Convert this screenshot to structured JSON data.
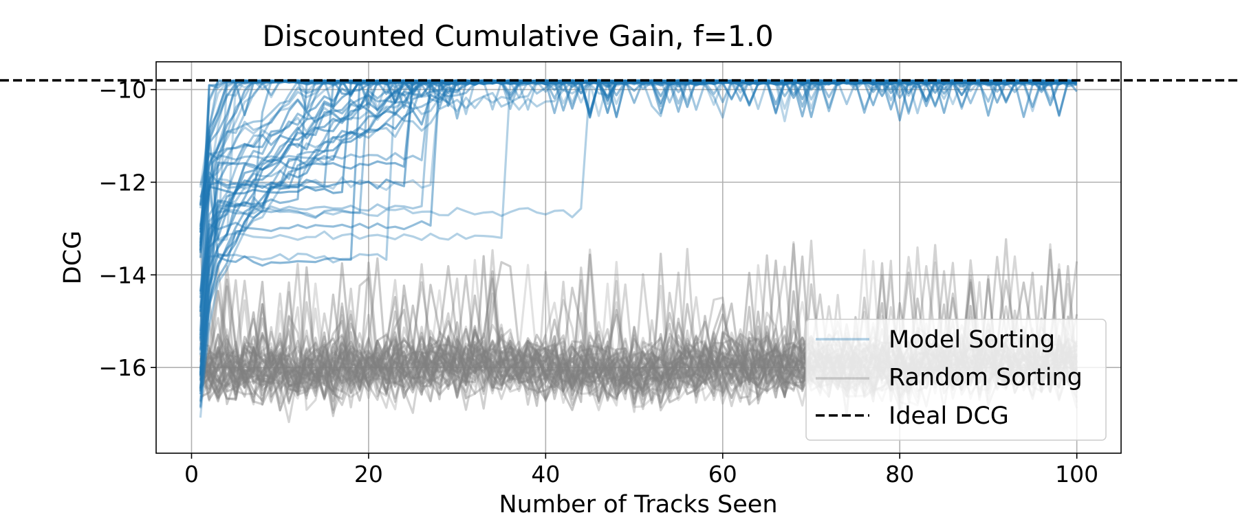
{
  "chart_data": {
    "type": "line",
    "title": "Discounted Cumulative Gain, f=1.0",
    "xlabel": "Number of Tracks Seen",
    "ylabel": "DCG",
    "xlim": [
      -4,
      105
    ],
    "ylim": [
      -17.85,
      -9.4
    ],
    "xticks": [
      0,
      20,
      40,
      60,
      80,
      100
    ],
    "xtick_labels": [
      "0",
      "20",
      "40",
      "60",
      "80",
      "100"
    ],
    "yticks": [
      -16,
      -14,
      -12,
      -10
    ],
    "ytick_labels": [
      "−16",
      "−14",
      "−12",
      "−10"
    ],
    "grid": true,
    "legend_position": "lower right",
    "colors": {
      "model": "#1f77b4",
      "random": "#808080",
      "ideal": "#000000"
    },
    "ideal_dcg": -9.8,
    "series": [
      {
        "name": "Model Sorting",
        "style": "solid",
        "color": "#1f77b4",
        "alpha": 0.3,
        "x": [
          1,
          2,
          3,
          4,
          5,
          6,
          8,
          10,
          12,
          15,
          20,
          30,
          40,
          60,
          80,
          100
        ],
        "values": [
          -16.4,
          -12.6,
          -11.2,
          -10.6,
          -10.3,
          -10.1,
          -10.0,
          -9.9,
          -9.9,
          -9.85,
          -9.85,
          -9.85,
          -9.85,
          -9.85,
          -9.85,
          -9.85
        ]
      },
      {
        "name": "Random Sorting",
        "style": "solid",
        "color": "#808080",
        "alpha": 0.3,
        "x": [
          1,
          10,
          20,
          30,
          40,
          50,
          60,
          70,
          80,
          90,
          100
        ],
        "values": [
          -16.0,
          -16.1,
          -16.0,
          -15.9,
          -16.0,
          -16.1,
          -16.0,
          -15.9,
          -16.0,
          -15.9,
          -15.9
        ]
      },
      {
        "name": "Ideal DCG",
        "style": "dashed",
        "color": "#000000",
        "x": [
          -4,
          105
        ],
        "values": [
          -9.8,
          -9.8
        ]
      }
    ]
  }
}
